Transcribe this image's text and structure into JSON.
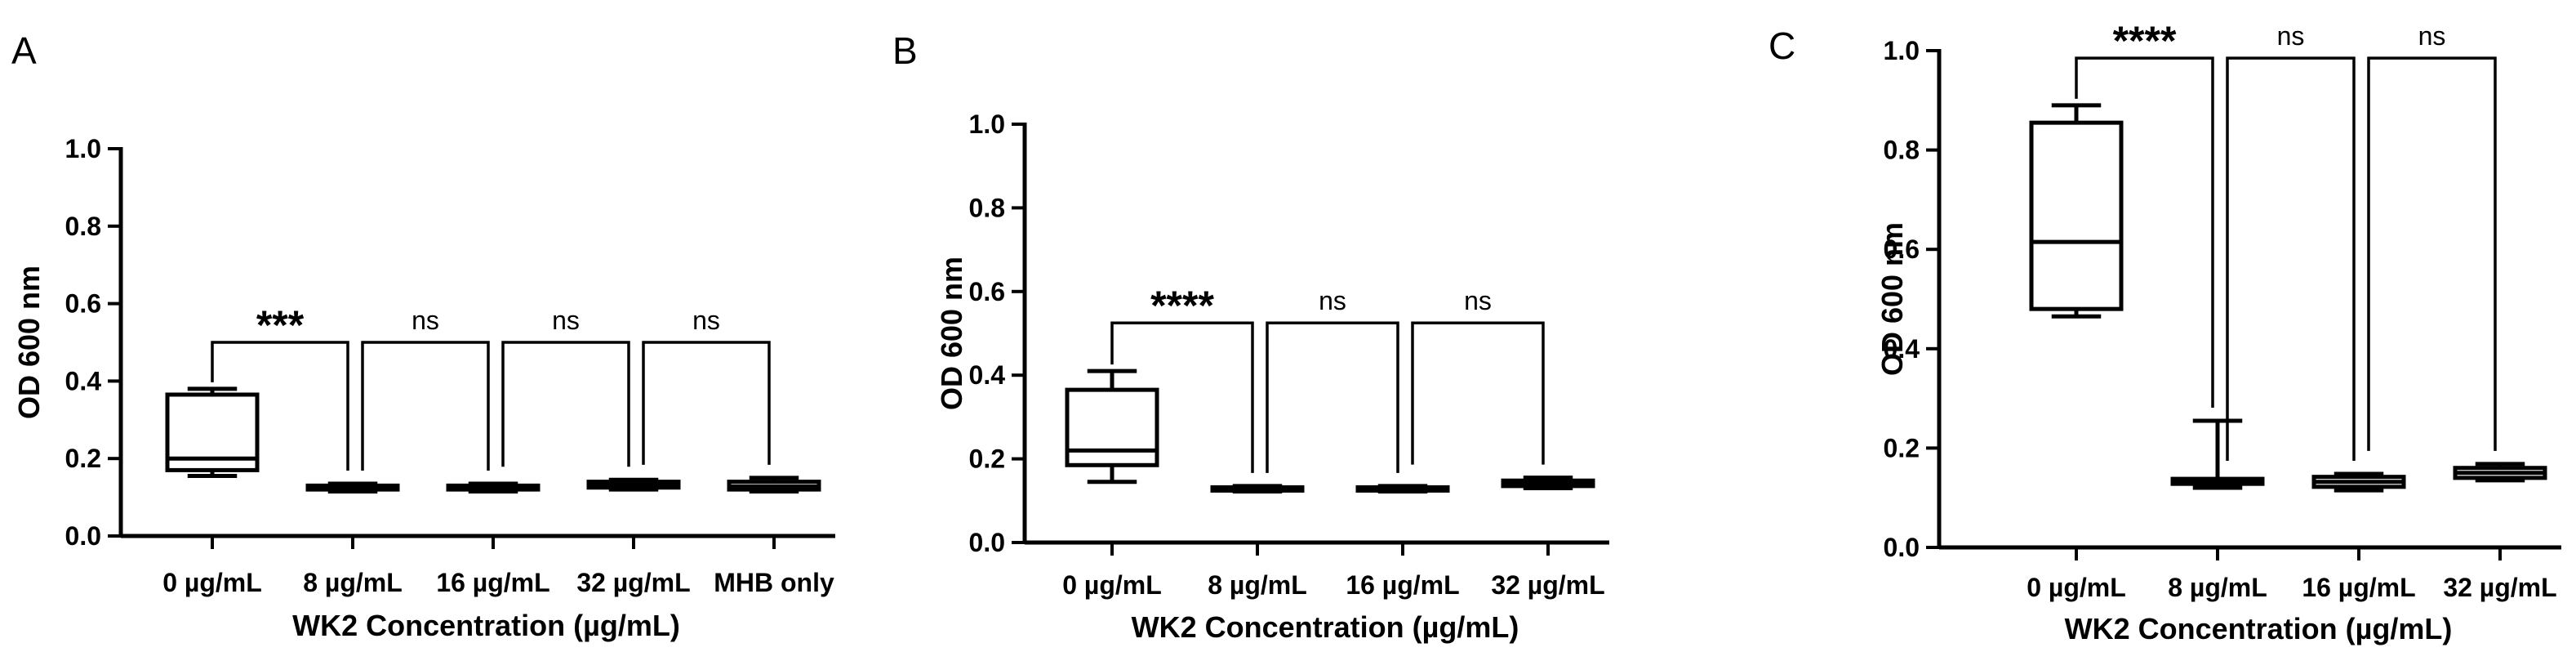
{
  "chart_data": [
    {
      "type": "box",
      "panel_label": "A",
      "ylabel": "OD 600 nm",
      "xlabel": "WK2 Concentration (µg/mL)",
      "ylim": [
        0,
        1.0
      ],
      "yticks": [
        "0.0",
        "0.2",
        "0.4",
        "0.6",
        "0.8",
        "1.0"
      ],
      "categories": [
        "0 µg/mL",
        "8 µg/mL",
        "16 µg/mL",
        "32 µg/mL",
        "MHB only"
      ],
      "boxes": [
        {
          "min": 0.155,
          "q1": 0.17,
          "median": 0.2,
          "q3": 0.365,
          "max": 0.38
        },
        {
          "min": 0.115,
          "q1": 0.12,
          "median": 0.125,
          "q3": 0.13,
          "max": 0.135
        },
        {
          "min": 0.115,
          "q1": 0.12,
          "median": 0.125,
          "q3": 0.13,
          "max": 0.135
        },
        {
          "min": 0.12,
          "q1": 0.125,
          "median": 0.132,
          "q3": 0.14,
          "max": 0.145
        },
        {
          "min": 0.115,
          "q1": 0.12,
          "median": 0.128,
          "q3": 0.14,
          "max": 0.15
        }
      ],
      "comparisons": [
        {
          "from": 0,
          "to": 1,
          "label": "***",
          "y": 0.5
        },
        {
          "from": 1,
          "to": 2,
          "label": "ns",
          "y": 0.5
        },
        {
          "from": 2,
          "to": 3,
          "label": "ns",
          "y": 0.5
        },
        {
          "from": 3,
          "to": 4,
          "label": "ns",
          "y": 0.5
        }
      ]
    },
    {
      "type": "box",
      "panel_label": "B",
      "ylabel": "OD 600 nm",
      "xlabel": "WK2 Concentration (µg/mL)",
      "ylim": [
        0,
        1.0
      ],
      "yticks": [
        "0.0",
        "0.2",
        "0.4",
        "0.6",
        "0.8",
        "1.0"
      ],
      "categories": [
        "0 µg/mL",
        "8 µg/mL",
        "16 µg/mL",
        "32 µg/mL"
      ],
      "boxes": [
        {
          "min": 0.145,
          "q1": 0.185,
          "median": 0.22,
          "q3": 0.365,
          "max": 0.41
        },
        {
          "min": 0.122,
          "q1": 0.125,
          "median": 0.128,
          "q3": 0.132,
          "max": 0.135
        },
        {
          "min": 0.122,
          "q1": 0.125,
          "median": 0.128,
          "q3": 0.132,
          "max": 0.135
        },
        {
          "min": 0.13,
          "q1": 0.135,
          "median": 0.14,
          "q3": 0.148,
          "max": 0.155
        }
      ],
      "comparisons": [
        {
          "from": 0,
          "to": 1,
          "label": "****",
          "y": 0.525
        },
        {
          "from": 1,
          "to": 2,
          "label": "ns",
          "y": 0.525
        },
        {
          "from": 2,
          "to": 3,
          "label": "ns",
          "y": 0.525
        }
      ]
    },
    {
      "type": "box",
      "panel_label": "C",
      "ylabel": "OD 600 nm",
      "xlabel": "WK2 Concentration (µg/mL)",
      "ylim": [
        0,
        1.0
      ],
      "yticks": [
        "0.0",
        "0.2",
        "0.4",
        "0.6",
        "0.8",
        "1.0"
      ],
      "categories": [
        "0 µg/mL",
        "8 µg/mL",
        "16 µg/mL",
        "32 µg/mL"
      ],
      "boxes": [
        {
          "min": 0.465,
          "q1": 0.48,
          "median": 0.615,
          "q3": 0.855,
          "max": 0.89
        },
        {
          "min": 0.12,
          "q1": 0.128,
          "median": 0.135,
          "q3": 0.138,
          "max": 0.255
        },
        {
          "min": 0.115,
          "q1": 0.122,
          "median": 0.132,
          "q3": 0.142,
          "max": 0.148
        },
        {
          "min": 0.135,
          "q1": 0.14,
          "median": 0.15,
          "q3": 0.16,
          "max": 0.168
        }
      ],
      "comparisons": [
        {
          "from": 0,
          "to": 1,
          "label": "****",
          "y": 0.985
        },
        {
          "from": 1,
          "to": 2,
          "label": "ns",
          "y": 0.985
        },
        {
          "from": 2,
          "to": 3,
          "label": "ns",
          "y": 0.985
        }
      ]
    }
  ]
}
